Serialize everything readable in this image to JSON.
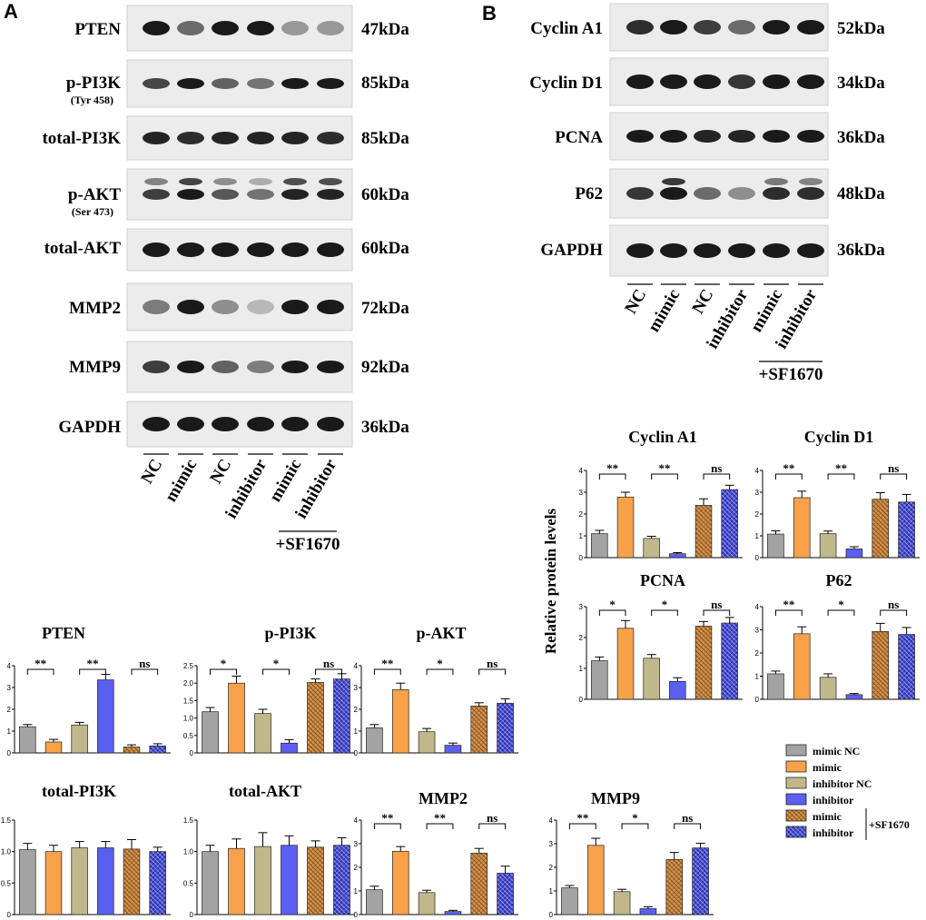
{
  "panel_letters": [
    "A",
    "B"
  ],
  "panel_a": {
    "blots": [
      {
        "label": "PTEN",
        "sub": "",
        "kda": "47kDa"
      },
      {
        "label": "p-PI3K",
        "sub": "(Tyr 458)",
        "kda": "85kDa"
      },
      {
        "label": "total-PI3K",
        "sub": "",
        "kda": "85kDa"
      },
      {
        "label": "p-AKT",
        "sub": "(Ser 473)",
        "kda": "60kDa"
      },
      {
        "label": "total-AKT",
        "sub": "",
        "kda": "60kDa"
      },
      {
        "label": "MMP2",
        "sub": "",
        "kda": "72kDa"
      },
      {
        "label": "MMP9",
        "sub": "",
        "kda": "92kDa"
      },
      {
        "label": "GAPDH",
        "sub": "",
        "kda": "36kDa"
      }
    ],
    "lanes": [
      "NC",
      "mimic",
      "NC",
      "inhibitor",
      "mimic",
      "inhibitor"
    ],
    "treatment": "+SF1670"
  },
  "panel_b": {
    "blots": [
      {
        "label": "Cyclin A1",
        "sub": "",
        "kda": "52kDa"
      },
      {
        "label": "Cyclin D1",
        "sub": "",
        "kda": "34kDa"
      },
      {
        "label": "PCNA",
        "sub": "",
        "kda": "36kDa"
      },
      {
        "label": "P62",
        "sub": "",
        "kda": "48kDa"
      },
      {
        "label": "GAPDH",
        "sub": "",
        "kda": "36kDa"
      }
    ],
    "lanes": [
      "NC",
      "mimic",
      "NC",
      "inhibitor",
      "mimic",
      "inhibitor"
    ],
    "treatment": "+SF1670",
    "ylabel": "Relative protein levels"
  },
  "legend": {
    "items": [
      "mimic NC",
      "mimic",
      "inhibitor NC",
      "inhibitor",
      "mimic",
      "inhibitor"
    ],
    "bracket_label": "+SF1670"
  },
  "colors": {
    "mimic_nc": "#a3a3a3",
    "mimic": "#f7a24a",
    "inhibitor_nc": "#c0b78a",
    "inhibitor": "#5b5ff0",
    "sf_mimic": "#b07836",
    "sf_inhibitor": "#2b2f8c"
  },
  "chart_data": [
    {
      "type": "bar",
      "title": "PTEN",
      "ylim": [
        0,
        4
      ],
      "yticks": [
        0,
        1,
        2,
        3,
        4
      ],
      "values": [
        1.2,
        0.5,
        1.28,
        3.35,
        0.27,
        0.32
      ],
      "errors": [
        0.1,
        0.12,
        0.12,
        0.25,
        0.1,
        0.1
      ],
      "significance": [
        "**",
        "**",
        "ns"
      ]
    },
    {
      "type": "bar",
      "title": "p-PI3K",
      "ylim": [
        0,
        2.5
      ],
      "yticks": [
        0,
        0.5,
        1.0,
        1.5,
        2.0,
        2.5
      ],
      "values": [
        1.18,
        2.0,
        1.13,
        0.28,
        2.02,
        2.12
      ],
      "errors": [
        0.12,
        0.2,
        0.12,
        0.1,
        0.1,
        0.15
      ],
      "significance": [
        "*",
        "*",
        "ns"
      ]
    },
    {
      "type": "bar",
      "title": "p-AKT",
      "ylim": [
        0,
        4
      ],
      "yticks": [
        0,
        1,
        2,
        3,
        4
      ],
      "values": [
        1.15,
        2.9,
        0.97,
        0.35,
        2.15,
        2.28
      ],
      "errors": [
        0.15,
        0.3,
        0.15,
        0.1,
        0.15,
        0.2
      ],
      "significance": [
        "**",
        "*",
        "ns"
      ]
    },
    {
      "type": "bar",
      "title": "total-PI3K",
      "ylim": [
        0,
        1.5
      ],
      "yticks": [
        0,
        0.5,
        1.0,
        1.5
      ],
      "values": [
        1.03,
        1.0,
        1.06,
        1.06,
        1.04,
        1.0
      ],
      "errors": [
        0.1,
        0.1,
        0.1,
        0.1,
        0.15,
        0.07
      ],
      "significance": []
    },
    {
      "type": "bar",
      "title": "total-AKT",
      "ylim": [
        0,
        1.5
      ],
      "yticks": [
        0,
        0.5,
        1.0,
        1.5
      ],
      "values": [
        1.0,
        1.05,
        1.08,
        1.1,
        1.07,
        1.1
      ],
      "errors": [
        0.1,
        0.15,
        0.22,
        0.15,
        0.1,
        0.12
      ],
      "significance": []
    },
    {
      "type": "bar",
      "title": "MMP2",
      "ylim": [
        0,
        4
      ],
      "yticks": [
        0,
        1,
        2,
        3,
        4
      ],
      "values": [
        1.05,
        2.68,
        0.93,
        0.13,
        2.6,
        1.75
      ],
      "errors": [
        0.15,
        0.2,
        0.1,
        0.05,
        0.2,
        0.3
      ],
      "significance": [
        "**",
        "**",
        "ns"
      ]
    },
    {
      "type": "bar",
      "title": "MMP9",
      "ylim": [
        0,
        4
      ],
      "yticks": [
        0,
        1,
        2,
        3,
        4
      ],
      "values": [
        1.13,
        2.93,
        0.97,
        0.25,
        2.33,
        2.82
      ],
      "errors": [
        0.1,
        0.3,
        0.1,
        0.08,
        0.3,
        0.2
      ],
      "significance": [
        "**",
        "*",
        "ns"
      ]
    },
    {
      "type": "bar",
      "title": "Cyclin A1",
      "ylim": [
        0,
        4
      ],
      "yticks": [
        0,
        1,
        2,
        3,
        4
      ],
      "values": [
        1.1,
        2.78,
        0.88,
        0.18,
        2.4,
        3.12
      ],
      "errors": [
        0.15,
        0.22,
        0.1,
        0.05,
        0.3,
        0.2
      ],
      "significance": [
        "**",
        "**",
        "ns"
      ]
    },
    {
      "type": "bar",
      "title": "Cyclin D1",
      "ylim": [
        0,
        4
      ],
      "yticks": [
        0,
        1,
        2,
        3,
        4
      ],
      "values": [
        1.08,
        2.75,
        1.1,
        0.4,
        2.68,
        2.55
      ],
      "errors": [
        0.15,
        0.3,
        0.12,
        0.1,
        0.3,
        0.35
      ],
      "significance": [
        "**",
        "**",
        "ns"
      ]
    },
    {
      "type": "bar",
      "title": "PCNA",
      "ylim": [
        0,
        3
      ],
      "yticks": [
        0,
        1,
        2,
        3
      ],
      "values": [
        1.25,
        2.3,
        1.33,
        0.58,
        2.37,
        2.47
      ],
      "errors": [
        0.12,
        0.25,
        0.12,
        0.12,
        0.15,
        0.18
      ],
      "significance": [
        "*",
        "*",
        "ns"
      ]
    },
    {
      "type": "bar",
      "title": "P62",
      "ylim": [
        0,
        4
      ],
      "yticks": [
        0,
        1,
        2,
        3,
        4
      ],
      "values": [
        1.1,
        2.83,
        0.95,
        0.2,
        2.93,
        2.8
      ],
      "errors": [
        0.12,
        0.3,
        0.15,
        0.05,
        0.35,
        0.3
      ],
      "significance": [
        "**",
        "*",
        "ns"
      ]
    }
  ]
}
